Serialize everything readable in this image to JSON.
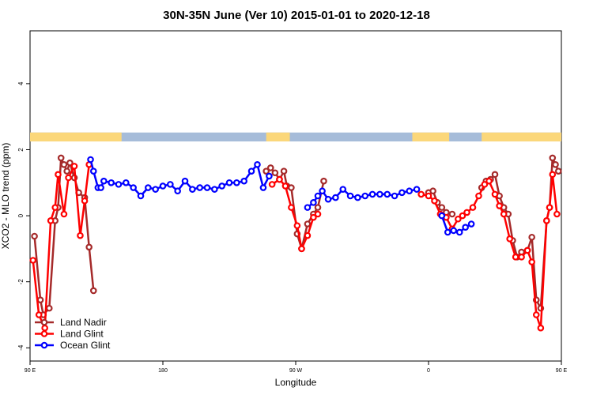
{
  "chart_data": {
    "type": "line",
    "title": "30N-35N June (Ver 10)   2015-01-01 to 2020-12-18",
    "xlabel": "Longitude",
    "ylabel": "XCO2 - MLO trend (ppm)",
    "xlim": [
      90,
      450
    ],
    "ylim": [
      -4.4,
      5.6
    ],
    "x_ticks": [
      {
        "value": 90,
        "label": "90 E"
      },
      {
        "value": 180,
        "label": "180"
      },
      {
        "value": 270,
        "label": "90 W"
      },
      {
        "value": 360,
        "label": "0"
      },
      {
        "value": 450,
        "label": "90 E"
      },
      {
        "value": 540,
        "label": "180"
      }
    ],
    "y_ticks": [
      -4,
      -2,
      0,
      2,
      4
    ],
    "grid": false,
    "legend_position": "bottom-left",
    "land_ocean_strip": {
      "land_color": "#fbd77a",
      "ocean_color": "#a6bcd9",
      "land_ranges": [
        [
          90,
          152
        ],
        [
          250,
          266
        ],
        [
          349,
          374
        ],
        [
          396,
          458
        ],
        [
          485,
          540
        ]
      ]
    },
    "series": [
      {
        "name": "Land Nadir",
        "color": "#a52a2a",
        "segments": [
          [
            [
              93,
              -0.62
            ],
            [
              97,
              -2.55
            ],
            [
              99,
              -3.0
            ],
            [
              103,
              -2.8
            ],
            [
              107,
              -0.15
            ],
            [
              109,
              0.25
            ],
            [
              111,
              1.75
            ],
            [
              113,
              1.55
            ],
            [
              115,
              1.35
            ],
            [
              117,
              1.6
            ],
            [
              120,
              1.15
            ],
            [
              123,
              0.7
            ],
            [
              127,
              0.55
            ],
            [
              130,
              -0.95
            ],
            [
              133,
              -2.27
            ]
          ],
          [
            [
              250,
              1.35
            ],
            [
              253,
              1.45
            ],
            [
              256,
              1.3
            ],
            [
              259,
              1.1
            ],
            [
              262,
              1.35
            ],
            [
              264,
              0.9
            ],
            [
              267,
              0.85
            ],
            [
              271,
              -0.55
            ],
            [
              274,
              -1.0
            ],
            [
              278,
              -0.25
            ],
            [
              282,
              0.05
            ],
            [
              285,
              0.25
            ],
            [
              289,
              1.05
            ]
          ],
          [
            [
              360,
              0.7
            ],
            [
              363,
              0.75
            ],
            [
              366,
              0.4
            ],
            [
              369,
              0.25
            ],
            [
              372,
              0.1
            ],
            [
              376,
              0.05
            ]
          ],
          [
            [
              396,
              0.85
            ],
            [
              399,
              1.05
            ],
            [
              402,
              1.1
            ],
            [
              405,
              1.25
            ],
            [
              408,
              0.6
            ],
            [
              411,
              0.25
            ],
            [
              414,
              0.05
            ],
            [
              417,
              -0.75
            ],
            [
              420,
              -1.25
            ],
            [
              423,
              -1.1
            ],
            [
              427,
              -1.05
            ],
            [
              430,
              -0.65
            ],
            [
              433,
              -2.55
            ],
            [
              436,
              -2.8
            ],
            [
              440,
              -0.15
            ],
            [
              442,
              0.25
            ],
            [
              444,
              1.75
            ],
            [
              446,
              1.55
            ],
            [
              448,
              1.35
            ]
          ]
        ]
      },
      {
        "name": "Land Glint",
        "color": "#ff0000",
        "segments": [
          [
            [
              92,
              -1.35
            ],
            [
              96,
              -3.0
            ],
            [
              100,
              -3.4
            ],
            [
              104,
              -0.15
            ],
            [
              107,
              0.25
            ],
            [
              109,
              1.25
            ],
            [
              113,
              0.05
            ],
            [
              116,
              1.15
            ],
            [
              120,
              1.5
            ],
            [
              124,
              -0.6
            ],
            [
              127,
              0.45
            ],
            [
              130,
              1.55
            ]
          ],
          [
            [
              254,
              0.95
            ],
            [
              259,
              1.1
            ],
            [
              263,
              0.9
            ],
            [
              267,
              0.25
            ],
            [
              271,
              -0.3
            ],
            [
              274,
              -1.0
            ],
            [
              278,
              -0.6
            ],
            [
              282,
              -0.05
            ],
            [
              285,
              0.05
            ]
          ],
          [
            [
              355,
              0.65
            ],
            [
              360,
              0.6
            ],
            [
              364,
              0.45
            ],
            [
              368,
              0.05
            ],
            [
              372,
              -0.05
            ],
            [
              376,
              -0.4
            ],
            [
              380,
              -0.1
            ],
            [
              383,
              0.0
            ],
            [
              386,
              0.1
            ],
            [
              390,
              0.25
            ],
            [
              394,
              0.6
            ],
            [
              398,
              0.95
            ],
            [
              401,
              1.05
            ],
            [
              405,
              0.65
            ],
            [
              408,
              0.3
            ],
            [
              411,
              0.05
            ],
            [
              415,
              -0.7
            ],
            [
              419,
              -1.25
            ],
            [
              423,
              -1.25
            ],
            [
              427,
              -1.05
            ],
            [
              430,
              -1.4
            ],
            [
              433,
              -3.0
            ],
            [
              436,
              -3.4
            ],
            [
              440,
              -0.15
            ],
            [
              442,
              0.25
            ],
            [
              444,
              1.25
            ],
            [
              447,
              0.05
            ]
          ]
        ]
      },
      {
        "name": "Ocean Glint",
        "color": "#0000ff",
        "segments": [
          [
            [
              131,
              1.7
            ],
            [
              133,
              1.35
            ],
            [
              136,
              0.85
            ],
            [
              138,
              0.85
            ],
            [
              140,
              1.05
            ],
            [
              145,
              1.0
            ],
            [
              150,
              0.95
            ],
            [
              155,
              1.0
            ],
            [
              160,
              0.85
            ],
            [
              165,
              0.6
            ],
            [
              170,
              0.85
            ],
            [
              175,
              0.8
            ],
            [
              180,
              0.9
            ],
            [
              185,
              0.95
            ],
            [
              190,
              0.75
            ],
            [
              195,
              1.05
            ],
            [
              200,
              0.8
            ],
            [
              205,
              0.85
            ],
            [
              210,
              0.85
            ],
            [
              215,
              0.8
            ],
            [
              220,
              0.9
            ],
            [
              225,
              1.0
            ],
            [
              230,
              1.0
            ],
            [
              235,
              1.05
            ],
            [
              240,
              1.35
            ],
            [
              244,
              1.55
            ],
            [
              248,
              0.85
            ],
            [
              252,
              1.2
            ]
          ],
          [
            [
              278,
              0.25
            ],
            [
              282,
              0.4
            ],
            [
              285,
              0.6
            ],
            [
              288,
              0.75
            ],
            [
              292,
              0.5
            ],
            [
              297,
              0.55
            ],
            [
              302,
              0.8
            ],
            [
              307,
              0.6
            ],
            [
              312,
              0.55
            ],
            [
              317,
              0.6
            ],
            [
              322,
              0.65
            ],
            [
              327,
              0.65
            ],
            [
              332,
              0.65
            ],
            [
              337,
              0.6
            ],
            [
              342,
              0.7
            ],
            [
              347,
              0.75
            ],
            [
              352,
              0.8
            ]
          ],
          [
            [
              369,
              0.0
            ],
            [
              373,
              -0.5
            ],
            [
              377,
              -0.45
            ],
            [
              381,
              -0.5
            ],
            [
              385,
              -0.35
            ],
            [
              389,
              -0.25
            ]
          ]
        ]
      }
    ]
  }
}
